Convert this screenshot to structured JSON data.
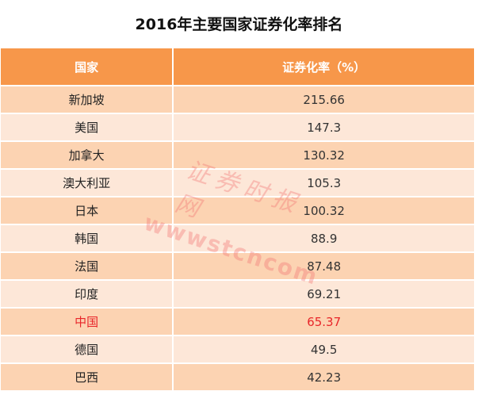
{
  "chart_data": {
    "type": "table",
    "title": "2016年主要国家证券化率排名",
    "columns": [
      "国家",
      "证券化率（%）"
    ],
    "rows": [
      {
        "country": "新加坡",
        "value": "215.66"
      },
      {
        "country": "美国",
        "value": "147.3"
      },
      {
        "country": "加拿大",
        "value": "130.32"
      },
      {
        "country": "澳大利亚",
        "value": "105.3"
      },
      {
        "country": "日本",
        "value": "100.32"
      },
      {
        "country": "韩国",
        "value": "88.9"
      },
      {
        "country": "法国",
        "value": "87.48"
      },
      {
        "country": "印度",
        "value": "69.21"
      },
      {
        "country": "中国",
        "value": "65.37",
        "highlight": true
      },
      {
        "country": "德国",
        "value": "49.5"
      },
      {
        "country": "巴西",
        "value": "42.23"
      }
    ]
  },
  "watermark": {
    "line1": "证券时报网",
    "line2": "wwwstcncom"
  },
  "colors": {
    "header": "#f7974a",
    "row_odd": "#fcd3b2",
    "row_even": "#fde7d8",
    "highlight": "#e8262a"
  }
}
